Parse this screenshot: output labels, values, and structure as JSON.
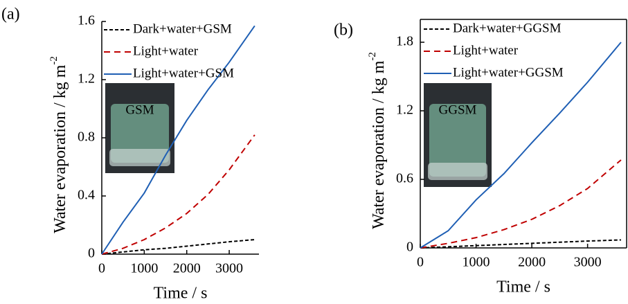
{
  "chart_data": [
    {
      "type": "line",
      "panel_label": "(a)",
      "xlabel": "Time / s",
      "ylabel": "Water evaporation / kg m",
      "ylabel_superscript": "-2",
      "inset_label": "GSM",
      "frame": false,
      "x": [
        0,
        500,
        1000,
        1500,
        2000,
        2500,
        3000,
        3600
      ],
      "xlim": [
        0,
        3700
      ],
      "xticks": [
        0,
        1000,
        2000,
        3000
      ],
      "ylim": [
        0,
        1.6
      ],
      "yticks": [
        0,
        0.4,
        0.8,
        1.2,
        1.6
      ],
      "series": [
        {
          "name": "Dark+water+GSM",
          "color": "#000000",
          "dash": "dashed",
          "values": [
            0,
            0.015,
            0.03,
            0.04,
            0.055,
            0.07,
            0.085,
            0.1
          ]
        },
        {
          "name": "Light+water",
          "color": "#c00000",
          "dash": "dashed",
          "values": [
            0,
            0.04,
            0.1,
            0.18,
            0.28,
            0.41,
            0.58,
            0.82
          ]
        },
        {
          "name": "Light+water+GSM",
          "color": "#1f5fb4",
          "dash": "solid",
          "values": [
            0,
            0.22,
            0.42,
            0.68,
            0.92,
            1.13,
            1.32,
            1.57
          ]
        }
      ]
    },
    {
      "type": "line",
      "panel_label": "(b)",
      "xlabel": "Time / s",
      "ylabel": "Water evaporation / kg m",
      "ylabel_superscript": "-2",
      "inset_label": "GGSM",
      "frame": true,
      "x": [
        0,
        500,
        1000,
        1500,
        2000,
        2500,
        3000,
        3600
      ],
      "xlim": [
        0,
        3700
      ],
      "xticks": [
        0,
        1000,
        2000,
        3000
      ],
      "ylim": [
        0,
        2.0
      ],
      "yticks": [
        0,
        0.6,
        1.2,
        1.8
      ],
      "series": [
        {
          "name": "Dark+water+GGSM",
          "color": "#000000",
          "dash": "dashed",
          "values": [
            0,
            0.01,
            0.02,
            0.03,
            0.04,
            0.05,
            0.06,
            0.07
          ]
        },
        {
          "name": "Light+water",
          "color": "#c00000",
          "dash": "dashed",
          "values": [
            0,
            0.04,
            0.09,
            0.16,
            0.25,
            0.37,
            0.52,
            0.77
          ]
        },
        {
          "name": "Light+water+GGSM",
          "color": "#1f5fb4",
          "dash": "solid",
          "values": [
            0,
            0.15,
            0.42,
            0.65,
            0.92,
            1.18,
            1.45,
            1.8
          ]
        }
      ]
    }
  ]
}
